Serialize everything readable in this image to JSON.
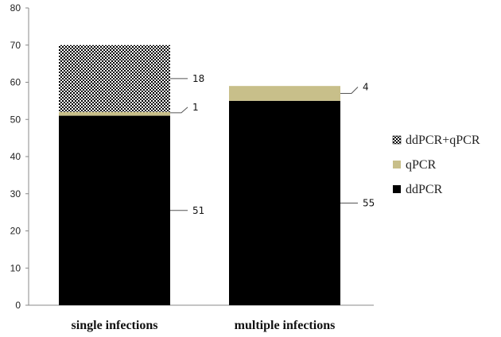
{
  "chart_data": {
    "type": "bar",
    "stacked": true,
    "categories": [
      "single infections",
      "multiple infections"
    ],
    "series": [
      {
        "name": "ddPCR",
        "values": [
          51,
          55
        ],
        "color": "#000000",
        "pattern": "solid"
      },
      {
        "name": "qPCR",
        "values": [
          1,
          4
        ],
        "color": "#c8bf8a",
        "pattern": "solid"
      },
      {
        "name": "ddPCR+qPCR",
        "values": [
          18,
          0
        ],
        "color": "#000000",
        "pattern": "checker"
      }
    ],
    "y_ticks": [
      "0",
      "10",
      "20",
      "30",
      "40",
      "50",
      "60",
      "70",
      "80"
    ],
    "ylim": [
      0,
      80
    ],
    "grid": false,
    "legend_position": "right",
    "data_labels": [
      {
        "category": "single infections",
        "series": "ddPCR",
        "text": "51"
      },
      {
        "category": "single infections",
        "series": "qPCR",
        "text": "1"
      },
      {
        "category": "single infections",
        "series": "ddPCR+qPCR",
        "text": "18"
      },
      {
        "category": "multiple infections",
        "series": "ddPCR",
        "text": "55"
      },
      {
        "category": "multiple infections",
        "series": "qPCR",
        "text": "4"
      }
    ]
  }
}
